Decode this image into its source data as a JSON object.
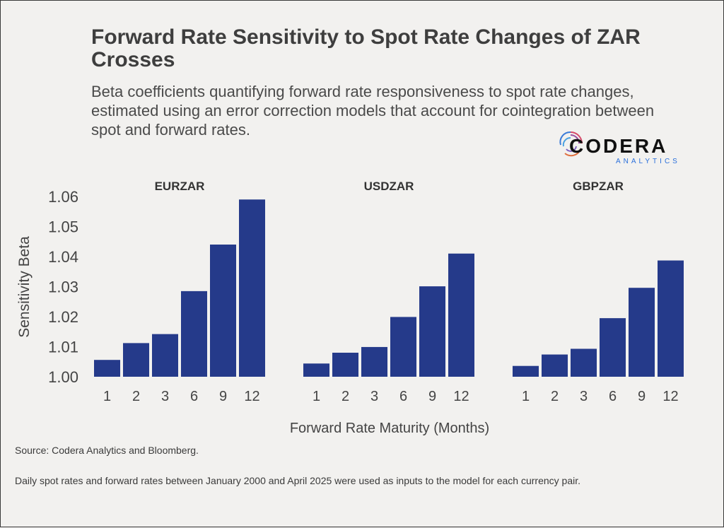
{
  "title": "Forward Rate Sensitivity to Spot Rate Changes of ZAR Crosses",
  "subtitle": "Beta coefficients quantifying forward rate responsiveness to spot rate changes, estimated using an error correction models that account for cointegration between spot and forward rates.",
  "logo": {
    "word": "CODERA",
    "sub": "ANALYTICS"
  },
  "source": "Source: Codera Analytics and Bloomberg.",
  "note": "Daily spot rates and forward rates between January 2000 and April 2025 were used as inputs to the model for each currency pair.",
  "chart_data": {
    "type": "bar",
    "xlabel": "Forward Rate Maturity (Months)",
    "ylabel": "Sensitivity Beta",
    "ylim": [
      1.0,
      1.06
    ],
    "yticks": [
      "1.00",
      "1.01",
      "1.02",
      "1.03",
      "1.04",
      "1.05",
      "1.06"
    ],
    "categories": [
      "1",
      "2",
      "3",
      "6",
      "9",
      "12"
    ],
    "bar_color": "#253a8a",
    "grid": false,
    "panels": [
      {
        "name": "EURZAR",
        "values": [
          1.0056,
          1.0112,
          1.0142,
          1.0285,
          1.044,
          1.059
        ]
      },
      {
        "name": "USDZAR",
        "values": [
          1.0044,
          1.008,
          1.0099,
          1.0199,
          1.0301,
          1.041
        ]
      },
      {
        "name": "GBPZAR",
        "values": [
          1.0036,
          1.0074,
          1.0093,
          1.0195,
          1.0296,
          1.0387
        ]
      }
    ]
  }
}
